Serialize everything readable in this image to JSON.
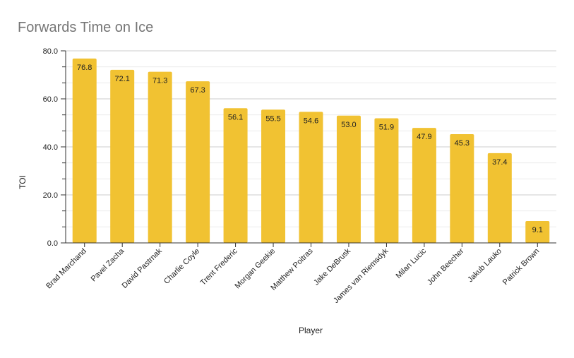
{
  "chart_data": {
    "type": "bar",
    "title": "Forwards Time on Ice",
    "xlabel": "Player",
    "ylabel": "TOI",
    "ylim": [
      0,
      80
    ],
    "yticks": [
      "0.0",
      "20.0",
      "40.0",
      "60.0",
      "80.0"
    ],
    "grid": true,
    "bar_color": "#f1c232",
    "categories": [
      "Brad Marchand",
      "Pavel Zacha",
      "David Pastrnak",
      "Charlie Coyle",
      "Trent Frederic",
      "Morgan Geekie",
      "Matthew Poitras",
      "Jake DeBrusk",
      "James van Riemsdyk",
      "Milan Lucic",
      "John Beecher",
      "Jakub Lauko",
      "Patrick Brown"
    ],
    "values": [
      76.8,
      72.1,
      71.3,
      67.3,
      56.1,
      55.5,
      54.6,
      53.0,
      51.9,
      47.9,
      45.3,
      37.4,
      9.1
    ],
    "data_labels": [
      "76.8",
      "72.1",
      "71.3",
      "67.3",
      "56.1",
      "55.5",
      "54.6",
      "53.0",
      "51.9",
      "47.9",
      "45.3",
      "37.4",
      "9.1"
    ]
  }
}
